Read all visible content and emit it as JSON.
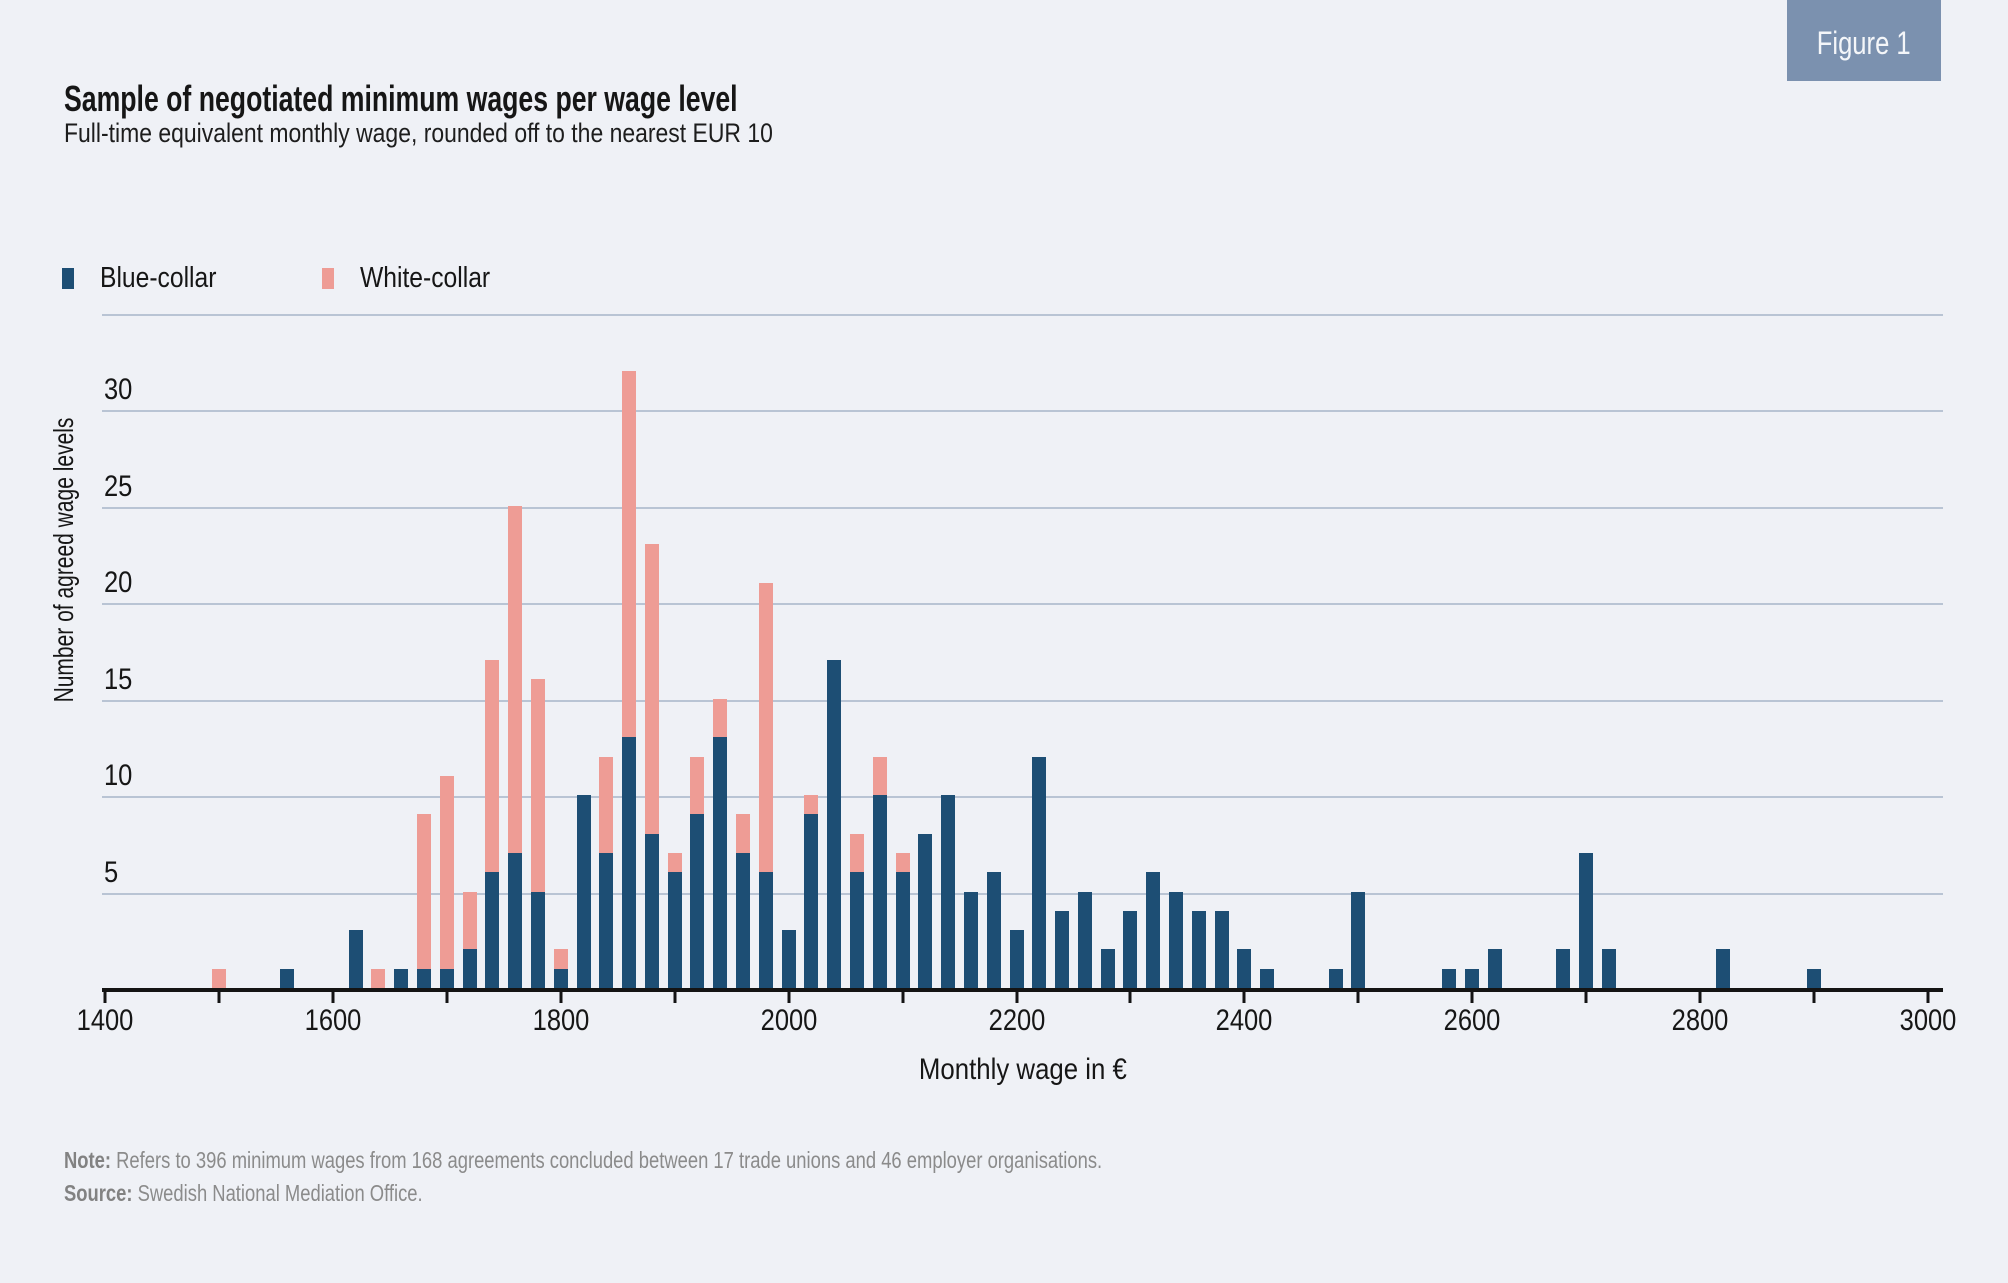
{
  "figure_label": "Figure 1",
  "header": {
    "title": "Sample of negotiated minimum wages per wage level",
    "subtitle": "Full-time equivalent monthly wage, rounded off to the nearest EUR 10"
  },
  "legend": [
    {
      "label": "Blue-collar",
      "color": "#1d4e74"
    },
    {
      "label": "White-collar",
      "color": "#ee9c95"
    }
  ],
  "chart_data": {
    "type": "bar",
    "stacked": true,
    "title": "Sample of negotiated minimum wages per wage level",
    "subtitle": "Full-time equivalent monthly wage, rounded off to the nearest EUR 10",
    "xlabel": "Monthly wage in €",
    "ylabel": "Number of agreed wage levels",
    "legend_position": "top-left",
    "grid": true,
    "x_axis": {
      "min": 1400,
      "max": 3000,
      "tick_step": 100,
      "labels": [
        1400,
        1600,
        1800,
        2000,
        2200,
        2400,
        2600,
        2800,
        3000
      ]
    },
    "y_axis": {
      "ylim": [
        0,
        35
      ],
      "gridline_step": 5,
      "top_gridline": 35,
      "labels": [
        5,
        10,
        15,
        20,
        25,
        30
      ]
    },
    "series_names": [
      "Blue-collar",
      "White-collar"
    ],
    "bars": [
      {
        "wage": 1500,
        "blue": 0,
        "white": 1
      },
      {
        "wage": 1560,
        "blue": 1,
        "white": 0
      },
      {
        "wage": 1620,
        "blue": 3,
        "white": 0
      },
      {
        "wage": 1640,
        "blue": 0,
        "white": 1
      },
      {
        "wage": 1660,
        "blue": 1,
        "white": 0
      },
      {
        "wage": 1680,
        "blue": 1,
        "white": 8
      },
      {
        "wage": 1700,
        "blue": 1,
        "white": 10
      },
      {
        "wage": 1720,
        "blue": 2,
        "white": 3
      },
      {
        "wage": 1740,
        "blue": 6,
        "white": 11
      },
      {
        "wage": 1760,
        "blue": 7,
        "white": 18
      },
      {
        "wage": 1780,
        "blue": 5,
        "white": 11
      },
      {
        "wage": 1800,
        "blue": 1,
        "white": 1
      },
      {
        "wage": 1820,
        "blue": 10,
        "white": 0
      },
      {
        "wage": 1840,
        "blue": 7,
        "white": 5
      },
      {
        "wage": 1860,
        "blue": 13,
        "white": 19
      },
      {
        "wage": 1880,
        "blue": 8,
        "white": 15
      },
      {
        "wage": 1900,
        "blue": 6,
        "white": 1
      },
      {
        "wage": 1920,
        "blue": 9,
        "white": 3
      },
      {
        "wage": 1940,
        "blue": 13,
        "white": 2
      },
      {
        "wage": 1960,
        "blue": 7,
        "white": 2
      },
      {
        "wage": 1980,
        "blue": 6,
        "white": 15
      },
      {
        "wage": 2000,
        "blue": 3,
        "white": 0
      },
      {
        "wage": 2020,
        "blue": 9,
        "white": 1
      },
      {
        "wage": 2040,
        "blue": 17,
        "white": 0
      },
      {
        "wage": 2060,
        "blue": 6,
        "white": 2
      },
      {
        "wage": 2080,
        "blue": 10,
        "white": 2
      },
      {
        "wage": 2100,
        "blue": 6,
        "white": 1
      },
      {
        "wage": 2120,
        "blue": 8,
        "white": 0
      },
      {
        "wage": 2140,
        "blue": 10,
        "white": 0
      },
      {
        "wage": 2160,
        "blue": 5,
        "white": 0
      },
      {
        "wage": 2180,
        "blue": 6,
        "white": 0
      },
      {
        "wage": 2200,
        "blue": 3,
        "white": 0
      },
      {
        "wage": 2220,
        "blue": 12,
        "white": 0
      },
      {
        "wage": 2240,
        "blue": 4,
        "white": 0
      },
      {
        "wage": 2260,
        "blue": 5,
        "white": 0
      },
      {
        "wage": 2280,
        "blue": 2,
        "white": 0
      },
      {
        "wage": 2300,
        "blue": 4,
        "white": 0
      },
      {
        "wage": 2320,
        "blue": 6,
        "white": 0
      },
      {
        "wage": 2340,
        "blue": 5,
        "white": 0
      },
      {
        "wage": 2360,
        "blue": 4,
        "white": 0
      },
      {
        "wage": 2380,
        "blue": 4,
        "white": 0
      },
      {
        "wage": 2400,
        "blue": 2,
        "white": 0
      },
      {
        "wage": 2420,
        "blue": 1,
        "white": 0
      },
      {
        "wage": 2480,
        "blue": 1,
        "white": 0
      },
      {
        "wage": 2500,
        "blue": 5,
        "white": 0
      },
      {
        "wage": 2580,
        "blue": 1,
        "white": 0
      },
      {
        "wage": 2600,
        "blue": 1,
        "white": 0
      },
      {
        "wage": 2620,
        "blue": 2,
        "white": 0
      },
      {
        "wage": 2680,
        "blue": 2,
        "white": 0
      },
      {
        "wage": 2700,
        "blue": 7,
        "white": 0
      },
      {
        "wage": 2720,
        "blue": 2,
        "white": 0
      },
      {
        "wage": 2820,
        "blue": 2,
        "white": 0
      },
      {
        "wage": 2900,
        "blue": 1,
        "white": 0
      }
    ]
  },
  "footer": {
    "note_label": "Note:",
    "note_text": " Refers to 396 minimum wages from 168 agreements concluded between 17 trade unions and 46 employer organisations.",
    "source_label": "Source:",
    "source_text": " Swedish National Mediation Office."
  },
  "colors": {
    "background": "#eff1f6",
    "blue_collar": "#1d4e74",
    "white_collar": "#ee9c95",
    "gridline": "#b9c4d4",
    "axis": "#141414",
    "text": "#161616",
    "muted_text": "#8b8b8b",
    "badge_background": "#7b91af",
    "badge_text": "#f4f6f9"
  }
}
